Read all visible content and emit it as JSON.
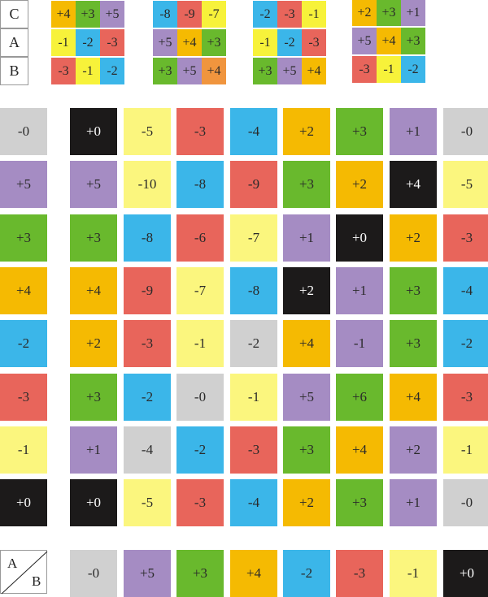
{
  "colors": {
    "gray": "#d0d0d0",
    "black": "#1c1a1a",
    "yellow": "#fbf67e",
    "brightyellow": "#f7f23a",
    "red": "#e8655b",
    "blue": "#3bb6e9",
    "orange": "#f5ba02",
    "orange2": "#f0953e",
    "green": "#69b92d",
    "purple": "#a58cc3"
  },
  "top_labels": [
    "C",
    "A",
    "B"
  ],
  "top_groups": [
    [
      [
        [
          "+4",
          "orange"
        ],
        [
          "+3",
          "green"
        ],
        [
          "+5",
          "purple"
        ]
      ],
      [
        [
          "-1",
          "brightyellow"
        ],
        [
          "-2",
          "blue"
        ],
        [
          "-3",
          "red"
        ]
      ],
      [
        [
          "-3",
          "red"
        ],
        [
          "-1",
          "brightyellow"
        ],
        [
          "-2",
          "blue"
        ]
      ]
    ],
    [
      [
        [
          "-8",
          "blue"
        ],
        [
          "-9",
          "red"
        ],
        [
          "-7",
          "brightyellow"
        ]
      ],
      [
        [
          "+5",
          "purple"
        ],
        [
          "+4",
          "orange"
        ],
        [
          "+3",
          "green"
        ]
      ],
      [
        [
          "+3",
          "green"
        ],
        [
          "+5",
          "purple"
        ],
        [
          "+4",
          "orange2"
        ]
      ]
    ],
    [
      [
        [
          "-2",
          "blue"
        ],
        [
          "-3",
          "red"
        ],
        [
          "-1",
          "brightyellow"
        ]
      ],
      [
        [
          "-1",
          "brightyellow"
        ],
        [
          "-2",
          "blue"
        ],
        [
          "-3",
          "red"
        ]
      ],
      [
        [
          "+3",
          "green"
        ],
        [
          "+5",
          "purple"
        ],
        [
          "+4",
          "orange"
        ]
      ]
    ],
    [
      [
        [
          "+2",
          "orange"
        ],
        [
          "+3",
          "green"
        ],
        [
          "+1",
          "purple"
        ]
      ],
      [
        [
          "+5",
          "purple"
        ],
        [
          "+4",
          "orange"
        ],
        [
          "+3",
          "green"
        ]
      ],
      [
        [
          "-3",
          "red"
        ],
        [
          "-1",
          "brightyellow"
        ],
        [
          "-2",
          "blue"
        ]
      ]
    ]
  ],
  "grid": [
    {
      "header": [
        "-0",
        "gray"
      ],
      "cells": [
        [
          "+0",
          "black"
        ],
        [
          "-5",
          "yellow"
        ],
        [
          "-3",
          "red"
        ],
        [
          "-4",
          "blue"
        ],
        [
          "+2",
          "orange"
        ],
        [
          "+3",
          "green"
        ],
        [
          "+1",
          "purple"
        ],
        [
          "-0",
          "gray"
        ]
      ]
    },
    {
      "header": [
        "+5",
        "purple"
      ],
      "cells": [
        [
          "+5",
          "purple"
        ],
        [
          "-10",
          "yellow"
        ],
        [
          "-8",
          "blue"
        ],
        [
          "-9",
          "red"
        ],
        [
          "+3",
          "green"
        ],
        [
          "+2",
          "orange"
        ],
        [
          "+4",
          "black"
        ],
        [
          "-5",
          "yellow"
        ]
      ]
    },
    {
      "header": [
        "+3",
        "green"
      ],
      "cells": [
        [
          "+3",
          "green"
        ],
        [
          "-8",
          "blue"
        ],
        [
          "-6",
          "red"
        ],
        [
          "-7",
          "yellow"
        ],
        [
          "+1",
          "purple"
        ],
        [
          "+0",
          "black"
        ],
        [
          "+2",
          "orange"
        ],
        [
          "-3",
          "red"
        ]
      ]
    },
    {
      "header": [
        "+4",
        "orange"
      ],
      "cells": [
        [
          "+4",
          "orange"
        ],
        [
          "-9",
          "red"
        ],
        [
          "-7",
          "yellow"
        ],
        [
          "-8",
          "blue"
        ],
        [
          "+2",
          "black"
        ],
        [
          "+1",
          "purple"
        ],
        [
          "+3",
          "green"
        ],
        [
          "-4",
          "blue"
        ]
      ]
    },
    {
      "header": [
        "-2",
        "blue"
      ],
      "cells": [
        [
          "+2",
          "orange"
        ],
        [
          "-3",
          "red"
        ],
        [
          "-1",
          "yellow"
        ],
        [
          "-2",
          "gray"
        ],
        [
          "+4",
          "orange"
        ],
        [
          "-1",
          "purple"
        ],
        [
          "+3",
          "green"
        ],
        [
          "-2",
          "blue"
        ]
      ]
    },
    {
      "header": [
        "-3",
        "red"
      ],
      "cells": [
        [
          "+3",
          "green"
        ],
        [
          "-2",
          "blue"
        ],
        [
          "-0",
          "gray"
        ],
        [
          "-1",
          "yellow"
        ],
        [
          "+5",
          "purple"
        ],
        [
          "+6",
          "green"
        ],
        [
          "+4",
          "orange"
        ],
        [
          "-3",
          "red"
        ]
      ]
    },
    {
      "header": [
        "-1",
        "yellow"
      ],
      "cells": [
        [
          "+1",
          "purple"
        ],
        [
          "-4",
          "gray"
        ],
        [
          "-2",
          "blue"
        ],
        [
          "-3",
          "red"
        ],
        [
          "+3",
          "green"
        ],
        [
          "+4",
          "orange"
        ],
        [
          "+2",
          "purple"
        ],
        [
          "-1",
          "yellow"
        ]
      ]
    },
    {
      "header": [
        "+0",
        "black"
      ],
      "cells": [
        [
          "+0",
          "black"
        ],
        [
          "-5",
          "yellow"
        ],
        [
          "-3",
          "red"
        ],
        [
          "-4",
          "blue"
        ],
        [
          "+2",
          "orange"
        ],
        [
          "+3",
          "green"
        ],
        [
          "+1",
          "purple"
        ],
        [
          "-0",
          "gray"
        ]
      ]
    }
  ],
  "corner": {
    "a": "A",
    "b": "B"
  },
  "bottom_row": [
    [
      "-0",
      "gray"
    ],
    [
      "+5",
      "purple"
    ],
    [
      "+3",
      "green"
    ],
    [
      "+4",
      "orange"
    ],
    [
      "-2",
      "blue"
    ],
    [
      "-3",
      "red"
    ],
    [
      "-1",
      "yellow"
    ],
    [
      "+0",
      "black"
    ]
  ]
}
